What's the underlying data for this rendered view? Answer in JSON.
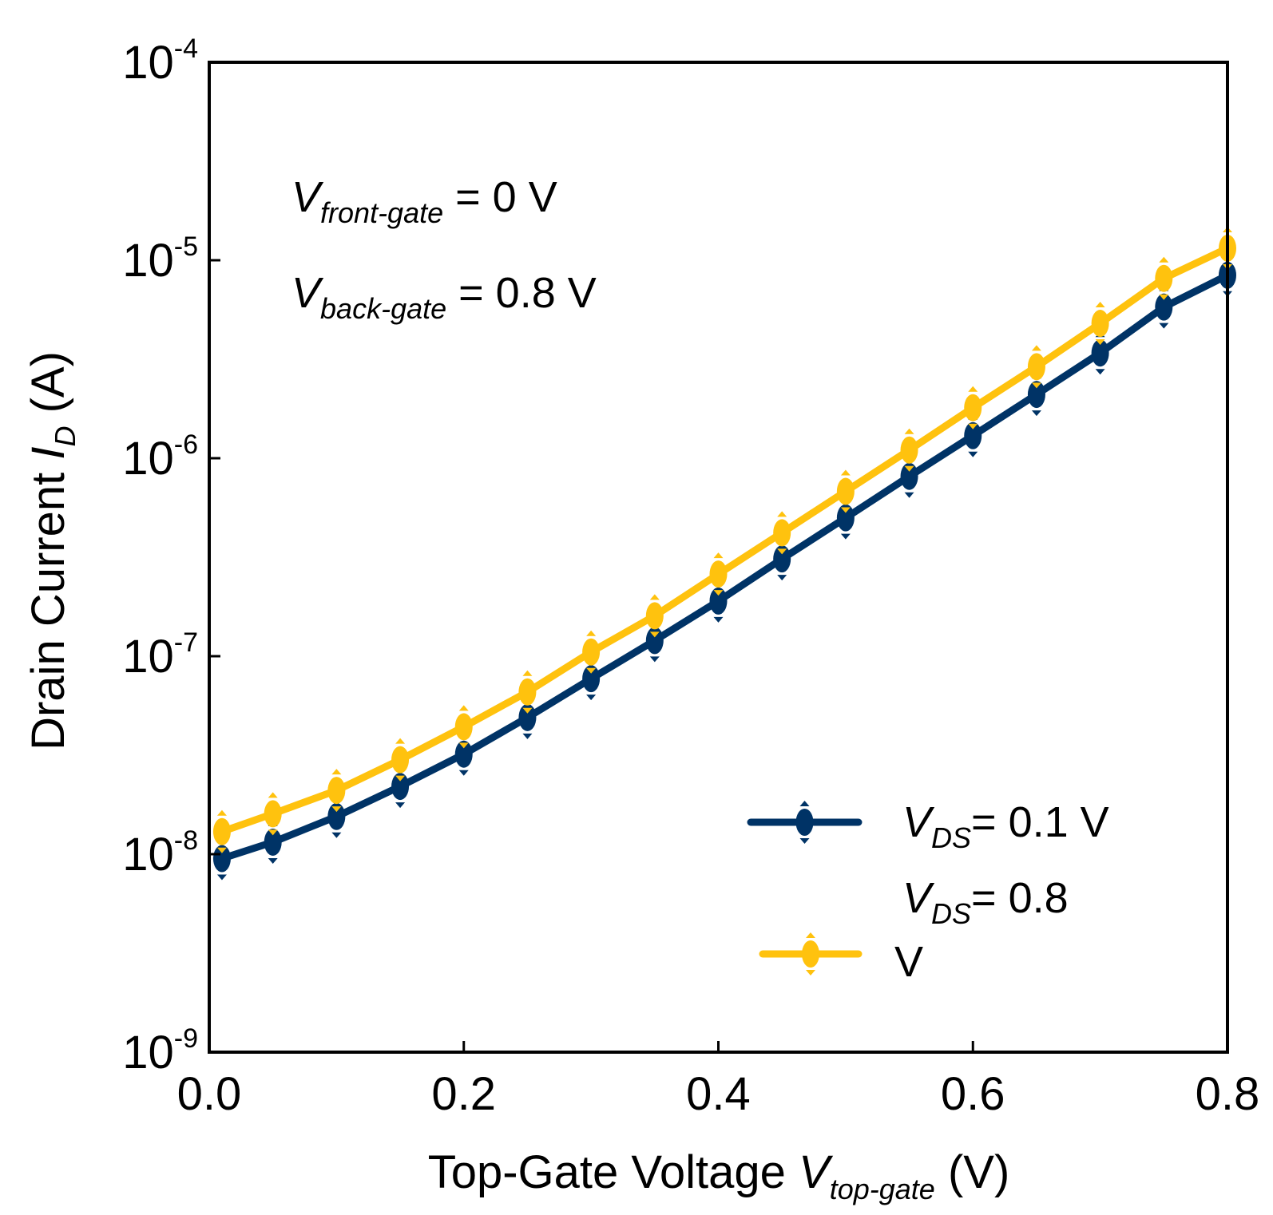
{
  "chart_data": {
    "type": "line",
    "x_axis": {
      "label_prefix": "Top-Gate Voltage ",
      "label_var": "V",
      "label_sub": "top-gate",
      "label_suffix": " (V)",
      "range": [
        0.0,
        0.8
      ],
      "ticks": [
        0.0,
        0.2,
        0.4,
        0.6,
        0.8
      ],
      "tick_labels": [
        "0.0",
        "0.2",
        "0.4",
        "0.6",
        "0.8"
      ]
    },
    "y_axis": {
      "scale": "log",
      "label_prefix": "Drain Current ",
      "label_var": "I",
      "label_sub": "D",
      "label_suffix": " (A)",
      "range": [
        1e-09,
        0.0001
      ],
      "ticks": [
        1e-09,
        1e-08,
        1e-07,
        1e-06,
        1e-05,
        0.0001
      ],
      "tick_bases": [
        "10",
        "10",
        "10",
        "10",
        "10",
        "10"
      ],
      "tick_exps": [
        "-9",
        "-8",
        "-7",
        "-6",
        "-5",
        "-4"
      ]
    },
    "x": [
      0.01,
      0.05,
      0.1,
      0.15,
      0.2,
      0.25,
      0.3,
      0.35,
      0.4,
      0.45,
      0.5,
      0.55,
      0.6,
      0.65,
      0.7,
      0.75,
      0.8
    ],
    "series": [
      {
        "name": "VDS = 0.1 V",
        "color": "#003366",
        "values": [
          9.5e-09,
          1.15e-08,
          1.55e-08,
          2.2e-08,
          3.2e-08,
          4.9e-08,
          7.7e-08,
          1.2e-07,
          1.9e-07,
          3.1e-07,
          5e-07,
          8.1e-07,
          1.3e-06,
          2.1e-06,
          3.4e-06,
          5.8e-06,
          8.4e-06
        ]
      },
      {
        "name": "VDS = 0.8 V",
        "color": "#FFC20E",
        "values": [
          1.3e-08,
          1.6e-08,
          2.1e-08,
          3e-08,
          4.4e-08,
          6.6e-08,
          1.05e-07,
          1.6e-07,
          2.6e-07,
          4.2e-07,
          6.8e-07,
          1.1e-06,
          1.8e-06,
          2.9e-06,
          4.8e-06,
          8.1e-06,
          1.15e-05
        ]
      }
    ],
    "annotations": [
      {
        "var": "V",
        "sub": "front-gate",
        "text": " = 0 V"
      },
      {
        "var": "V",
        "sub": "back-gate",
        "text": " = 0.8 V"
      }
    ],
    "legend": {
      "position": "bottom-right",
      "entries": [
        {
          "var": "V",
          "sub": "DS",
          "line1": "= 0.1 V",
          "line2": ""
        },
        {
          "var": "V",
          "sub": "DS",
          "line1": "= 0.8",
          "line2": "V"
        }
      ]
    },
    "grid": false
  }
}
